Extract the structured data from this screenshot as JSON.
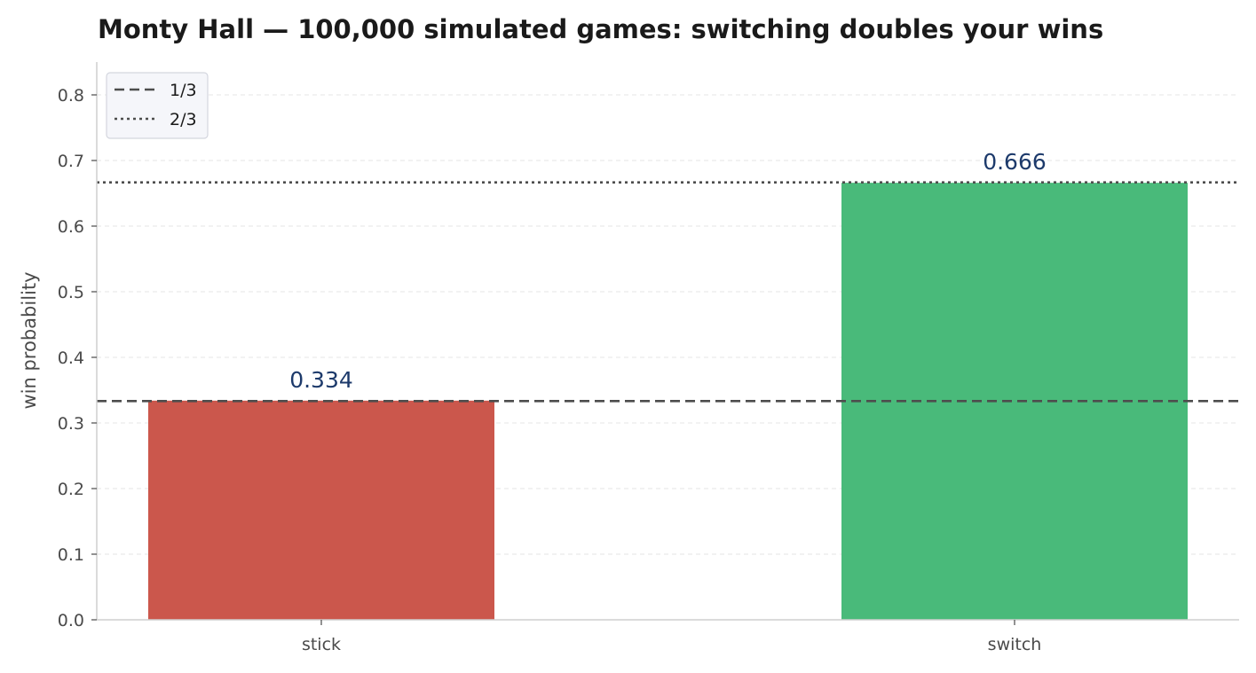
{
  "chart_data": {
    "type": "bar",
    "title": "Monty Hall — 100,000 simulated games: switching doubles your wins",
    "xlabel": "",
    "ylabel": "win probability",
    "categories": [
      "stick",
      "switch"
    ],
    "values": [
      0.334,
      0.666
    ],
    "value_labels": [
      "0.334",
      "0.666"
    ],
    "bar_colors": [
      "#cb574c",
      "#49ba7a"
    ],
    "ylim": [
      0,
      0.85
    ],
    "yticks": [
      0.0,
      0.1,
      0.2,
      0.3,
      0.4,
      0.5,
      0.6,
      0.7,
      0.8
    ],
    "ytick_labels": [
      "0.0",
      "0.1",
      "0.2",
      "0.3",
      "0.4",
      "0.5",
      "0.6",
      "0.7",
      "0.8"
    ],
    "grid": "horizontal dashed",
    "reference_lines": [
      {
        "label": "1/3",
        "value": 0.3333,
        "style": "dashed",
        "color": "#4d4d4d"
      },
      {
        "label": "2/3",
        "value": 0.6667,
        "style": "dotted",
        "color": "#4d4d4d"
      }
    ],
    "legend_placement": "top-left"
  }
}
